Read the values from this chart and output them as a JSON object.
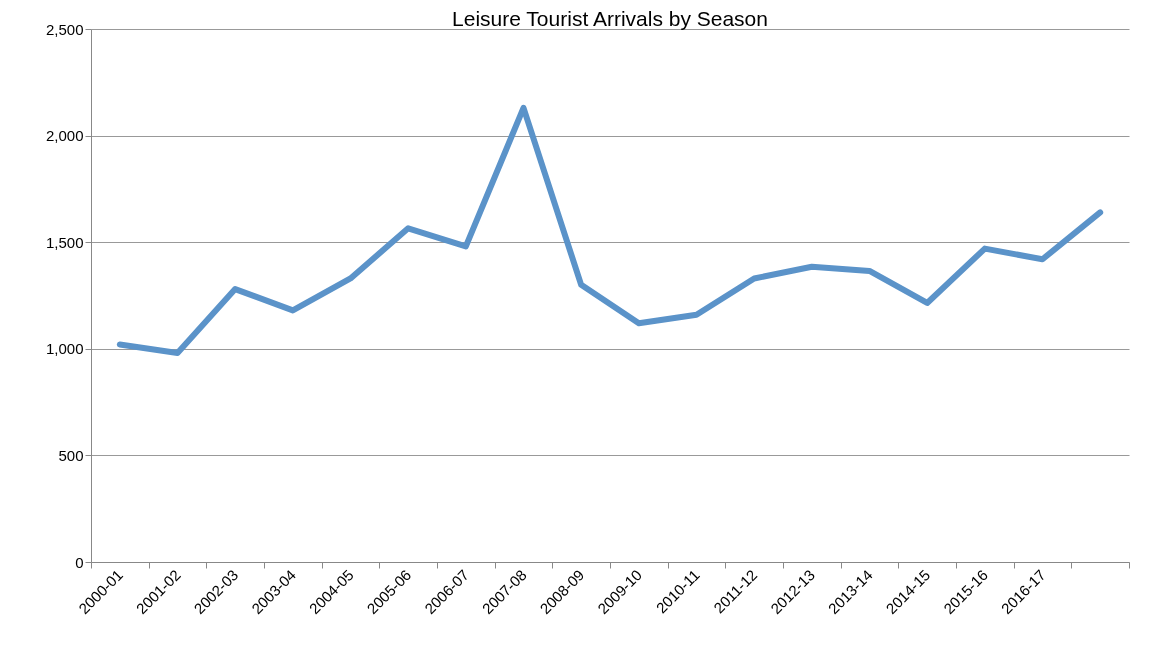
{
  "chart_data": {
    "type": "line",
    "title": "Leisure Tourist Arrivals by Season",
    "categories": [
      "2000-01",
      "2001-02",
      "2002-03",
      "2003-04",
      "2004-05",
      "2005-06",
      "2006-07",
      "2007-08",
      "2008-09",
      "2009-10",
      "2010-11",
      "2011-12",
      "2012-13",
      "2013-14",
      "2014-15",
      "2015-16",
      "2016-17",
      null
    ],
    "series": [
      {
        "color": "#5b93c9",
        "values": [
          1020,
          980,
          1280,
          1180,
          1330,
          1565,
          1480,
          2130,
          1300,
          1120,
          1160,
          1330,
          1385,
          1365,
          1215,
          1470,
          1420,
          1640
        ]
      }
    ],
    "ylim": [
      0,
      2500
    ],
    "yticks": [
      0,
      500,
      {
        "value": 1000,
        "label": "1,000"
      },
      {
        "value": 1500,
        "label": "1,500"
      },
      {
        "value": 2000,
        "label": "2,000"
      },
      {
        "value": 2500,
        "label": "2,500"
      }
    ],
    "grid": "y",
    "marker": "none",
    "line_style": "solid"
  }
}
